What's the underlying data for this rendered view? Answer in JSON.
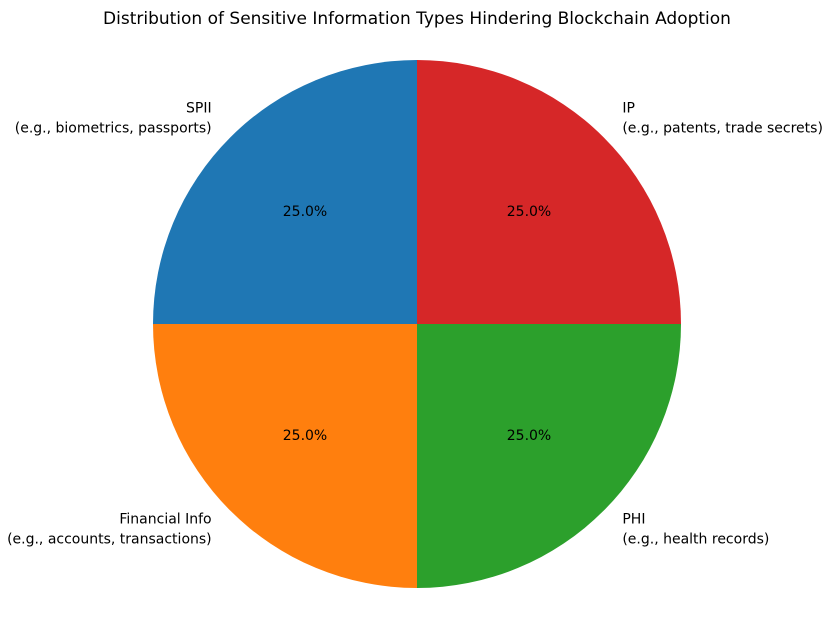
{
  "chart_data": {
    "type": "pie",
    "title": "Distribution of Sensitive Information Types Hindering Blockchain Adoption",
    "categories": [
      "SPII",
      "Financial Info",
      "PHI",
      "IP"
    ],
    "category_notes": [
      "(e.g., biometrics, passports)",
      "(e.g., accounts, transactions)",
      "(e.g., health records)",
      "(e.g., patents, trade secrets)"
    ],
    "values": [
      25,
      25,
      25,
      25
    ],
    "value_labels": [
      "25.0%",
      "25.0%",
      "25.0%",
      "25.0%"
    ],
    "colors": [
      "#1f77b4",
      "#ff7f0e",
      "#2ca02c",
      "#d62728"
    ],
    "start_angle": 90,
    "direction": "counterclockwise"
  }
}
